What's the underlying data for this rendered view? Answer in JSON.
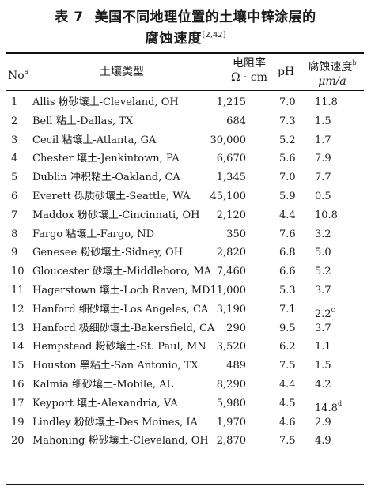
{
  "title": {
    "label": "表 7",
    "line1": "美国不同地理位置的土壤中锌涂层的",
    "line2": "腐蚀速度",
    "refs": "[2,42]"
  },
  "header": {
    "no": "No",
    "no_sup": "a",
    "soil_type": "土壤类型",
    "resistivity_line1": "电阻率",
    "resistivity_line2": "Ω · cm",
    "ph": "pH",
    "rate_line1": "腐蚀速度",
    "rate_sup": "b",
    "rate_line2": "μm/a"
  },
  "rows": [
    {
      "no": "1",
      "soil": "Allis 粉砂壤土-Cleveland, OH",
      "res": "1,215",
      "ph": "7.0",
      "rate": "11.8",
      "sup": ""
    },
    {
      "no": "2",
      "soil": "Bell 粘土-Dallas, TX",
      "res": "684",
      "ph": "7.3",
      "rate": "1.5",
      "sup": ""
    },
    {
      "no": "3",
      "soil": "Cecil 粘壤土-Atlanta, GA",
      "res": "30,000",
      "ph": "5.2",
      "rate": "1.7",
      "sup": ""
    },
    {
      "no": "4",
      "soil": "Chester 壤土-Jenkintown, PA",
      "res": "6,670",
      "ph": "5.6",
      "rate": "7.9",
      "sup": ""
    },
    {
      "no": "5",
      "soil": "Dublin 冲积粘土-Oakland, CA",
      "res": "1,345",
      "ph": "7.0",
      "rate": "7.7",
      "sup": ""
    },
    {
      "no": "6",
      "soil": "Everett 砾质砂壤土-Seattle, WA",
      "res": "45,100",
      "ph": "5.9",
      "rate": "0.5",
      "sup": ""
    },
    {
      "no": "7",
      "soil": "Maddox 粉砂壤土-Cincinnati, OH",
      "res": "2,120",
      "ph": "4.4",
      "rate": "10.8",
      "sup": ""
    },
    {
      "no": "8",
      "soil": "Fargo 粘壤土-Fargo, ND",
      "res": "350",
      "ph": "7.6",
      "rate": "3.2",
      "sup": ""
    },
    {
      "no": "9",
      "soil": "Genesee 粉砂壤土-Sidney, OH",
      "res": "2,820",
      "ph": "6.8",
      "rate": "5.0",
      "sup": ""
    },
    {
      "no": "10",
      "soil": "Gloucester 砂壤土-Middleboro, MA",
      "res": "7,460",
      "ph": "6.6",
      "rate": "5.2",
      "sup": ""
    },
    {
      "no": "11",
      "soil": "Hagerstown 壤土-Loch Raven, MD",
      "res": "11,000",
      "ph": "5.3",
      "rate": "3.7",
      "sup": ""
    },
    {
      "no": "12",
      "soil": "Hanford 细砂壤土-Los Angeles, CA",
      "res": "3,190",
      "ph": "7.1",
      "rate": "2.2",
      "sup": "c"
    },
    {
      "no": "13",
      "soil": "Hanford 极细砂壤土-Bakersfield, CA",
      "res": "290",
      "ph": "9.5",
      "rate": "3.7",
      "sup": ""
    },
    {
      "no": "14",
      "soil": "Hempstead 粉砂壤土-St. Paul, MN",
      "res": "3,520",
      "ph": "6.2",
      "rate": "1.1",
      "sup": ""
    },
    {
      "no": "15",
      "soil": "Houston 黑粘土-San Antonio, TX",
      "res": "489",
      "ph": "7.5",
      "rate": "1.5",
      "sup": ""
    },
    {
      "no": "16",
      "soil": "Kalmia 细砂壤土-Mobile, AL",
      "res": "8,290",
      "ph": "4.4",
      "rate": "4.2",
      "sup": ""
    },
    {
      "no": "17",
      "soil": "Keyport 壤土-Alexandria, VA",
      "res": "5,980",
      "ph": "4.5",
      "rate": "14.8",
      "sup": "d"
    },
    {
      "no": "19",
      "soil": "Lindley 粉砂壤土-Des Moines, IA",
      "res": "1,970",
      "ph": "4.6",
      "rate": "2.9",
      "sup": ""
    },
    {
      "no": "20",
      "soil": "Mahoning 粉砂壤土-Cleveland, OH",
      "res": "2,870",
      "ph": "7.5",
      "rate": "4.9",
      "sup": ""
    }
  ]
}
